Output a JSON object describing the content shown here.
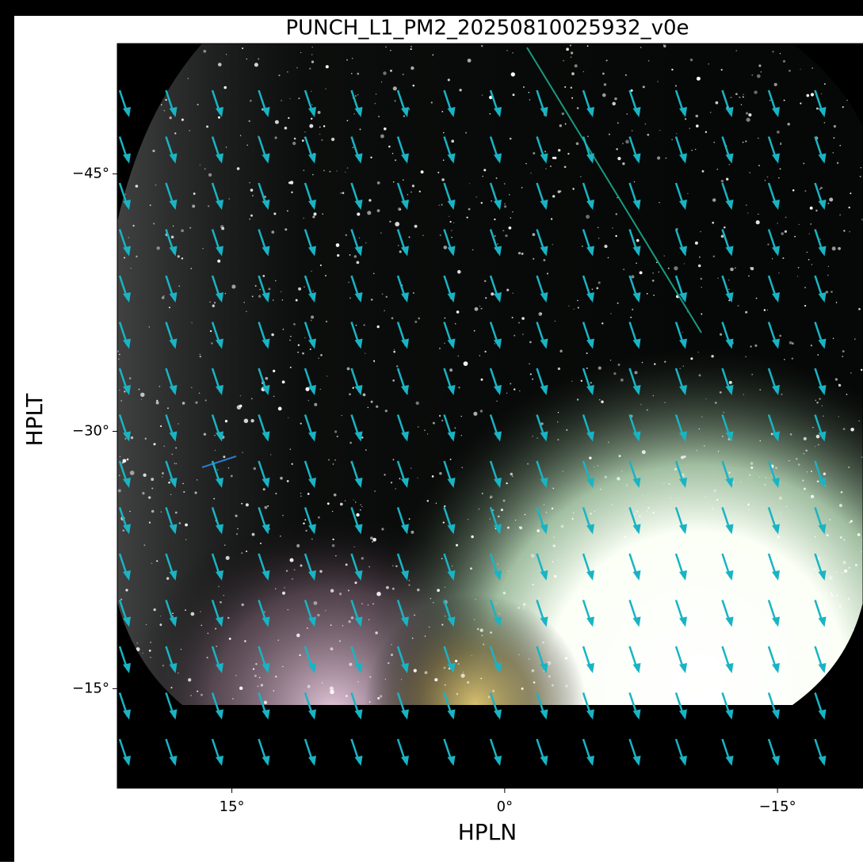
{
  "chart_data": {
    "type": "image",
    "title": "PUNCH_L1_PM2_20250810025932_v0e",
    "xlabel": "HPLN",
    "ylabel": "HPLT",
    "xlim": [
      21.3,
      -19.7
    ],
    "ylim": [
      -9.2,
      -52.6
    ],
    "xticks": [
      {
        "value": 15,
        "label": "15°"
      },
      {
        "value": 0,
        "label": "0°"
      },
      {
        "value": -15,
        "label": "−15°"
      }
    ],
    "yticks": [
      {
        "value": -45,
        "label": "−45°"
      },
      {
        "value": -30,
        "label": "−30°"
      },
      {
        "value": -15,
        "label": "−15°"
      }
    ],
    "arrow_color": "#19b4c4"
  }
}
